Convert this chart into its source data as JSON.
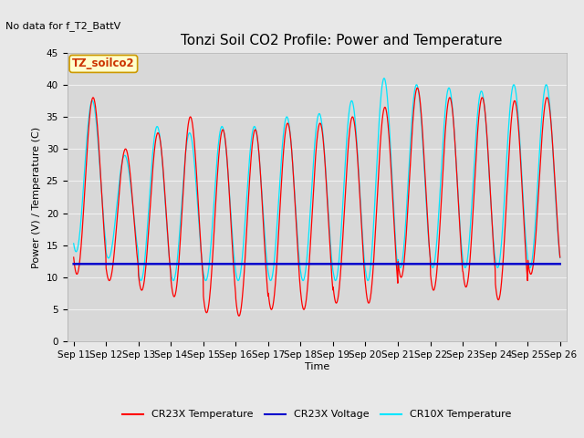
{
  "title": "Tonzi Soil CO2 Profile: Power and Temperature",
  "no_data_text": "No data for f_T2_BattV",
  "ylabel": "Power (V) / Temperature (C)",
  "xlabel": "Time",
  "ylim": [
    0,
    45
  ],
  "x_tick_labels": [
    "Sep 11",
    "Sep 12",
    "Sep 13",
    "Sep 14",
    "Sep 15",
    "Sep 16",
    "Sep 17",
    "Sep 18",
    "Sep 19",
    "Sep 20",
    "Sep 21",
    "Sep 22",
    "Sep 23",
    "Sep 24",
    "Sep 25",
    "Sep 26"
  ],
  "legend_label_box": "TZ_soilco2",
  "legend_entries": [
    "CR23X Temperature",
    "CR23X Voltage",
    "CR10X Temperature"
  ],
  "legend_colors": [
    "#ff0000",
    "#0000cc",
    "#00e5ff"
  ],
  "fig_bg_color": "#e8e8e8",
  "plot_bg_color": "#d8d8d8",
  "voltage_value": 12.1,
  "title_fontsize": 11,
  "axis_label_fontsize": 8,
  "tick_fontsize": 7.5,
  "no_data_fontsize": 8,
  "legend_fontsize": 8,
  "cr23x_peaks": [
    38,
    30,
    32.5,
    35,
    33,
    33,
    34,
    34,
    35,
    36.5,
    39.5,
    38,
    38,
    37.5,
    38
  ],
  "cr23x_mins": [
    10.5,
    9.5,
    8,
    7,
    4.5,
    4,
    5,
    5,
    6,
    6,
    10,
    8,
    8.5,
    6.5,
    10.5
  ],
  "cr10x_peaks": [
    37.5,
    29,
    33.5,
    32.5,
    33.5,
    33.5,
    35,
    35.5,
    37.5,
    41,
    40,
    39.5,
    39,
    40,
    40
  ],
  "cr10x_mins": [
    14,
    13,
    9.5,
    9.5,
    9.5,
    9.5,
    9.5,
    9.5,
    9.5,
    9.5,
    11.5,
    11.5,
    11.5,
    11.5,
    11.5
  ],
  "grid_color": "#f0f0f0",
  "n_days": 15,
  "pts_per_day": 96
}
